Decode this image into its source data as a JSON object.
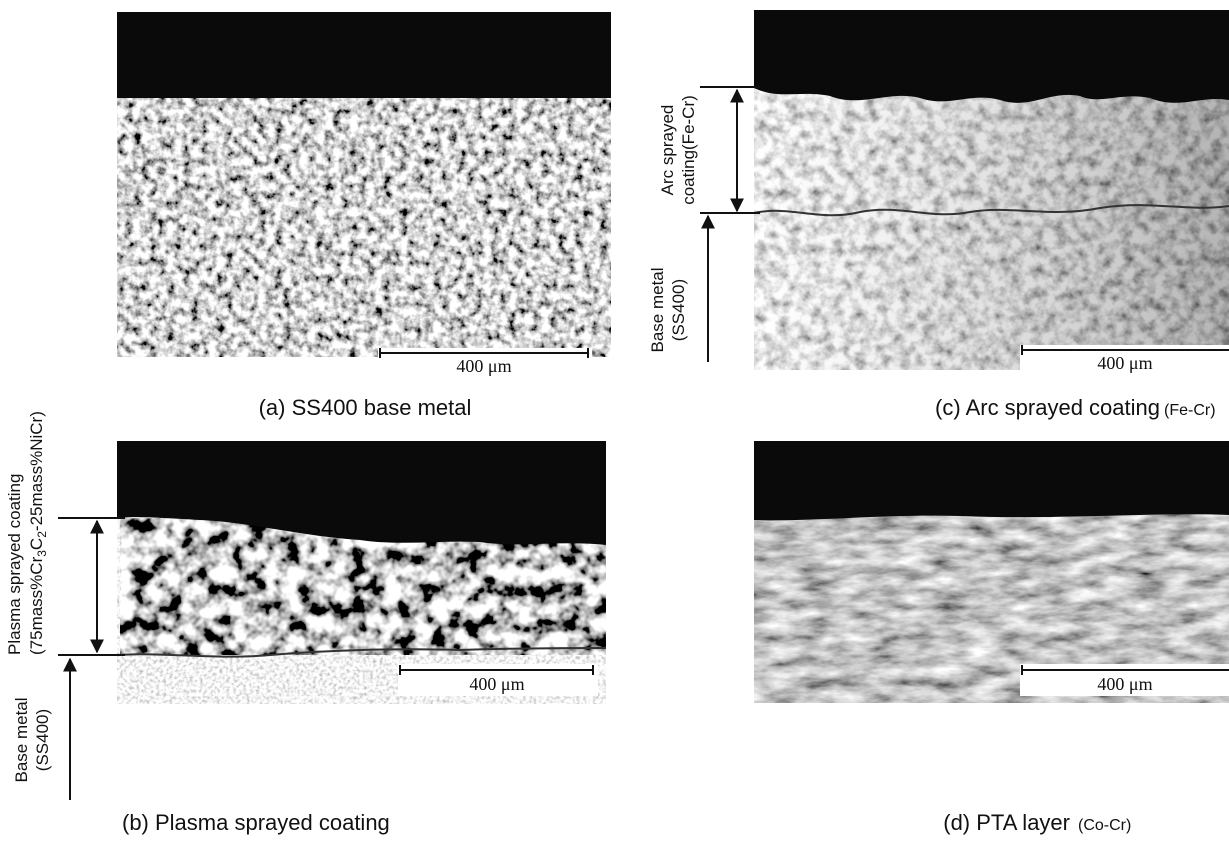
{
  "panels": [
    {
      "caption": "(a)  SS400 base metal",
      "scale_label": "400 μm"
    },
    {
      "caption": "(c)  Arc sprayed coating",
      "caption_note": "(Fe-Cr)",
      "scale_label": "400 μm",
      "coating_label": [
        "Arc sprayed",
        "coating(Fe-Cr)"
      ],
      "base_label": [
        "Base metal",
        "(SS400)"
      ]
    },
    {
      "caption": "(b)  Plasma sprayed coating",
      "scale_label": "400 μm",
      "coating_label": [
        "Plasma sprayed coating",
        [
          "(75mass%Cr",
          "3",
          "C",
          "2",
          "-25mass%NiCr)"
        ]
      ],
      "base_label": [
        "Base metal",
        "(SS400)"
      ]
    },
    {
      "caption": "(d)  PTA layer",
      "caption_note": "(Co-Cr)",
      "scale_label": "400 μm"
    }
  ]
}
